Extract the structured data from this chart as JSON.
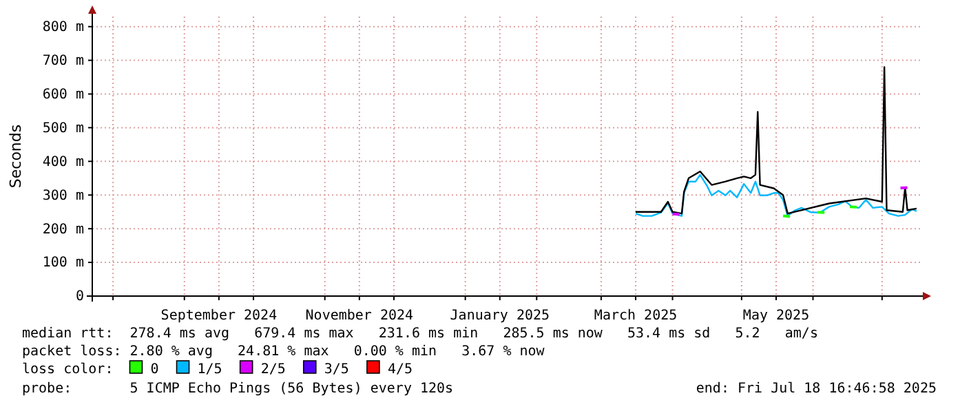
{
  "chart_data": {
    "type": "line",
    "ylabel": "Seconds",
    "legend_title": "loss color:",
    "legend": "bottom",
    "grid": true,
    "line_style": "solid",
    "marker": "none",
    "xlim": [
      "2024-07-23",
      "2025-07-18T16:46"
    ],
    "xticks": [
      {
        "value": "2024-08-01",
        "label": null
      },
      {
        "value": "2024-09-01",
        "label": null
      },
      {
        "value": "2024-09-16",
        "label": "September 2024"
      },
      {
        "value": "2024-10-01",
        "label": null
      },
      {
        "value": "2024-11-01",
        "label": null
      },
      {
        "value": "2024-11-16",
        "label": "November 2024"
      },
      {
        "value": "2024-12-01",
        "label": null
      },
      {
        "value": "2025-01-01",
        "label": null
      },
      {
        "value": "2025-01-16",
        "label": "January 2025"
      },
      {
        "value": "2025-02-01",
        "label": null
      },
      {
        "value": "2025-03-01",
        "label": null
      },
      {
        "value": "2025-03-16",
        "label": "March 2025"
      },
      {
        "value": "2025-04-01",
        "label": null
      },
      {
        "value": "2025-05-01",
        "label": null
      },
      {
        "value": "2025-05-16",
        "label": "May 2025"
      },
      {
        "value": "2025-06-01",
        "label": null
      },
      {
        "value": "2025-07-01",
        "label": null
      }
    ],
    "ylim": [
      0,
      830
    ],
    "yticks": [
      0,
      {
        "value": 100,
        "label": "100 m"
      },
      {
        "value": 200,
        "label": "200 m"
      },
      {
        "value": 300,
        "label": "300 m"
      },
      {
        "value": 400,
        "label": "400 m"
      },
      {
        "value": 500,
        "label": "500 m"
      },
      {
        "value": 600,
        "label": "600 m"
      },
      {
        "value": 700,
        "label": "700 m"
      },
      {
        "value": 800,
        "label": "800 m"
      }
    ],
    "series": [
      {
        "color": "#000000",
        "x": [
          "2025-03-16",
          "2025-03-27",
          "2025-03-30",
          "2025-04-01",
          "2025-04-05",
          "2025-04-06",
          "2025-04-08",
          "2025-04-13",
          "2025-04-18",
          "2025-04-24",
          "2025-04-29",
          "2025-05-02",
          "2025-05-05",
          "2025-05-07",
          "2025-05-08",
          "2025-05-09",
          "2025-05-15",
          "2025-05-19",
          "2025-05-21",
          "2025-06-08",
          "2025-06-24",
          "2025-07-01",
          "2025-07-02",
          "2025-07-03",
          "2025-07-10",
          "2025-07-11",
          "2025-07-12",
          "2025-07-16"
        ],
        "values": [
          250,
          250,
          280,
          250,
          245,
          310,
          350,
          370,
          330,
          340,
          350,
          355,
          350,
          360,
          547,
          330,
          320,
          300,
          245,
          275,
          290,
          280,
          680,
          255,
          250,
          322,
          255,
          260
        ]
      },
      {
        "name": "0",
        "color": "#26ff00",
        "x": [
          "2025-05-19",
          "2025-05-22",
          "2025-05-23",
          "2025-06-03",
          "2025-06-06",
          "2025-06-07",
          "2025-06-17",
          "2025-06-20"
        ],
        "values": [
          238,
          236,
          null,
          249,
          248,
          null,
          265,
          264
        ]
      },
      {
        "name": "1/5",
        "color": "#00b8ff",
        "x": [
          "2025-03-16",
          "2025-03-19",
          "2025-03-23",
          "2025-03-27",
          "2025-03-30",
          "2025-04-01",
          "2025-04-05",
          "2025-04-06",
          "2025-04-08",
          "2025-04-11",
          "2025-04-13",
          "2025-04-16",
          "2025-04-18",
          "2025-04-21",
          "2025-04-24",
          "2025-04-26",
          "2025-04-29",
          "2025-05-02",
          "2025-05-05",
          "2025-05-07",
          "2025-05-09",
          "2025-05-12",
          "2025-05-15",
          "2025-05-17",
          "2025-05-19",
          "2025-05-21",
          "2025-05-24",
          "2025-05-27",
          "2025-05-31",
          "2025-06-04",
          "2025-06-08",
          "2025-06-12",
          "2025-06-15",
          "2025-06-18",
          "2025-06-21",
          "2025-06-24",
          "2025-06-27",
          "2025-07-01",
          "2025-07-04",
          "2025-07-08",
          "2025-07-11",
          "2025-07-14",
          "2025-07-16"
        ],
        "values": [
          245,
          238,
          238,
          248,
          276,
          245,
          238,
          306,
          340,
          340,
          360,
          327,
          299,
          313,
          299,
          313,
          293,
          333,
          306,
          340,
          299,
          299,
          306,
          306,
          286,
          238,
          254,
          262,
          249,
          248,
          265,
          272,
          282,
          265,
          262,
          286,
          262,
          265,
          245,
          238,
          241,
          258,
          252
        ]
      },
      {
        "name": "2/5",
        "color": "#d900ff",
        "x": [
          "2025-04-01",
          "2025-04-04",
          "2025-04-05",
          "2025-07-09",
          "2025-07-12"
        ],
        "values": [
          244,
          243,
          null,
          321,
          322
        ]
      },
      {
        "name": "3/5",
        "color": "#5500ff"
      },
      {
        "name": "4/5",
        "color": "#ff0000"
      }
    ],
    "annotations": [
      "median rtt:  278.4 ms avg   679.4 ms max   231.6 ms min   285.5 ms now   53.4 ms sd   5.2   am/s",
      "packet loss: 2.80 % avg   24.81 % max   0.00 % min   3.67 % now",
      "probe:       5 ICMP Echo Pings (56 Bytes) every 120s",
      "end: Fri Jul 18 16:46:58 2025"
    ]
  }
}
